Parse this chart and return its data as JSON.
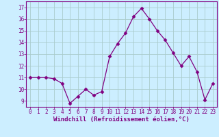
{
  "x": [
    0,
    1,
    2,
    3,
    4,
    5,
    6,
    7,
    8,
    9,
    10,
    11,
    12,
    13,
    14,
    15,
    16,
    17,
    18,
    19,
    20,
    21,
    22,
    23
  ],
  "y": [
    11,
    11,
    11,
    10.9,
    10.5,
    8.8,
    9.4,
    10.0,
    9.5,
    9.8,
    12.8,
    13.9,
    14.8,
    16.2,
    16.9,
    16.0,
    15.0,
    14.2,
    13.1,
    12.0,
    12.8,
    11.5,
    9.1,
    10.5
  ],
  "line_color": "#800080",
  "marker": "D",
  "marker_size": 2.5,
  "bg_color": "#cceeff",
  "grid_color": "#aacccc",
  "xlabel": "Windchill (Refroidissement éolien,°C)",
  "xlim": [
    -0.5,
    23.5
  ],
  "ylim": [
    8.5,
    17.5
  ],
  "yticks": [
    9,
    10,
    11,
    12,
    13,
    14,
    15,
    16,
    17
  ],
  "xticks": [
    0,
    1,
    2,
    3,
    4,
    5,
    6,
    7,
    8,
    9,
    10,
    11,
    12,
    13,
    14,
    15,
    16,
    17,
    18,
    19,
    20,
    21,
    22,
    23
  ],
  "tick_label_color": "#800080",
  "tick_label_size": 5.5,
  "xlabel_size": 6.5,
  "xlabel_color": "#800080",
  "spine_color": "#800080"
}
